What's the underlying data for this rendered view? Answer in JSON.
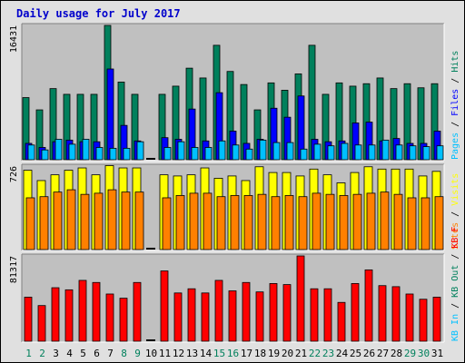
{
  "chart_data": [
    {
      "type": "bar",
      "panel": "top",
      "title": "Daily usage for July 2017",
      "ylabel_max": "16431",
      "categories": [
        "1",
        "2",
        "3",
        "4",
        "5",
        "6",
        "7",
        "8",
        "9",
        "10",
        "11",
        "12",
        "13",
        "14",
        "15",
        "16",
        "17",
        "18",
        "19",
        "20",
        "21",
        "22",
        "23",
        "24",
        "25",
        "26",
        "27",
        "28",
        "29",
        "30",
        "31"
      ],
      "weekend_days": [
        "1",
        "2",
        "8",
        "9",
        "15",
        "16",
        "22",
        "23",
        "29",
        "30"
      ],
      "legend": {
        "pages": "Pages",
        "files": "Files",
        "hits": "Hits",
        "sep": " / "
      },
      "series": [
        {
          "name": "Hits",
          "color": "#00805c",
          "values": [
            7600,
            6100,
            8700,
            8000,
            8000,
            8000,
            16431,
            9500,
            8000,
            0,
            8000,
            9000,
            11200,
            10000,
            14000,
            10800,
            9200,
            6100,
            9400,
            8500,
            10500,
            14000,
            8000,
            9400,
            9000,
            9300,
            10000,
            8700,
            9300,
            8800,
            9300
          ]
        },
        {
          "name": "Files",
          "color": "#0000ff",
          "values": [
            2000,
            1500,
            2200,
            2400,
            2200,
            2200,
            11100,
            4200,
            2300,
            0,
            2700,
            2500,
            6200,
            2300,
            8200,
            3500,
            2000,
            2500,
            6300,
            5200,
            7800,
            2500,
            2200,
            2300,
            4500,
            4600,
            2300,
            2600,
            2000,
            2000,
            3500
          ]
        },
        {
          "name": "Pages",
          "color": "#00c0ff",
          "values": [
            1800,
            1200,
            2500,
            1900,
            2500,
            1500,
            1400,
            1400,
            2200,
            0,
            1500,
            2200,
            1500,
            1500,
            2300,
            1800,
            1300,
            2400,
            2100,
            2100,
            1300,
            1900,
            1700,
            2000,
            1800,
            1800,
            2400,
            1800,
            1700,
            1600,
            1700
          ]
        }
      ]
    },
    {
      "type": "bar",
      "panel": "middle",
      "ylabel_max": "726",
      "categories": [
        "1",
        "2",
        "3",
        "4",
        "5",
        "6",
        "7",
        "8",
        "9",
        "10",
        "11",
        "12",
        "13",
        "14",
        "15",
        "16",
        "17",
        "18",
        "19",
        "20",
        "21",
        "22",
        "23",
        "24",
        "25",
        "26",
        "27",
        "28",
        "29",
        "30",
        "31"
      ],
      "legend": {
        "visits": "Visits",
        "sites": "Sites",
        "sep": " / "
      },
      "series": [
        {
          "name": "Visits",
          "color": "#ffff00",
          "values": [
            690,
            600,
            650,
            690,
            710,
            650,
            730,
            710,
            710,
            0,
            650,
            640,
            650,
            710,
            620,
            640,
            600,
            720,
            670,
            670,
            640,
            700,
            650,
            580,
            670,
            720,
            700,
            700,
            700,
            640,
            680
          ]
        },
        {
          "name": "Sites",
          "color": "#ff8000",
          "values": [
            450,
            460,
            500,
            520,
            480,
            490,
            520,
            500,
            500,
            0,
            450,
            470,
            490,
            490,
            460,
            470,
            470,
            480,
            460,
            470,
            460,
            490,
            480,
            470,
            480,
            490,
            500,
            480,
            450,
            450,
            460
          ]
        }
      ]
    },
    {
      "type": "bar",
      "panel": "bottom",
      "ylabel_max": "81317",
      "categories": [
        "1",
        "2",
        "3",
        "4",
        "5",
        "6",
        "7",
        "8",
        "9",
        "10",
        "11",
        "12",
        "13",
        "14",
        "15",
        "16",
        "17",
        "18",
        "19",
        "20",
        "21",
        "22",
        "23",
        "24",
        "25",
        "26",
        "27",
        "28",
        "29",
        "30",
        "31"
      ],
      "legend": {
        "kbin": "KB In",
        "kbout": "KB Out",
        "kbf": "KB F",
        "sep": " / "
      },
      "series": [
        {
          "name": "KB F",
          "color": "#ff0000",
          "values": [
            42000,
            34000,
            51000,
            49000,
            58000,
            56000,
            45000,
            41000,
            56000,
            0,
            67000,
            46000,
            50000,
            46000,
            58000,
            48000,
            56000,
            47000,
            55000,
            54000,
            81317,
            50000,
            50000,
            37000,
            55000,
            68000,
            53000,
            52000,
            45000,
            40000,
            42000
          ]
        }
      ]
    }
  ]
}
